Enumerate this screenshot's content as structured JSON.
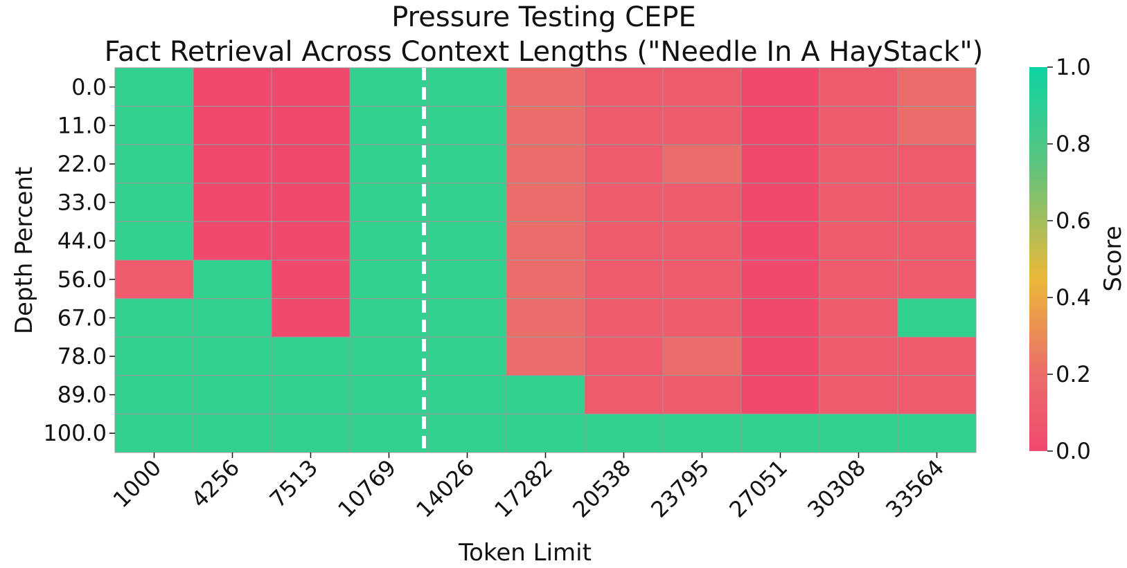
{
  "chart_data": {
    "type": "heatmap",
    "title": "Pressure Testing CEPE",
    "subtitle": "Fact Retrieval Across Context Lengths (\"Needle In A HayStack\")",
    "xlabel": "Token Limit",
    "ylabel": "Depth Percent",
    "x": [
      "1000",
      "4256",
      "7513",
      "10769",
      "14026",
      "17282",
      "20538",
      "23795",
      "27051",
      "30308",
      "33564"
    ],
    "y": [
      "0.0",
      "11.0",
      "22.0",
      "33.0",
      "44.0",
      "56.0",
      "67.0",
      "78.0",
      "89.0",
      "100.0"
    ],
    "values": [
      [
        1,
        0,
        0,
        1,
        1,
        0.2,
        0.1,
        0.1,
        0.0,
        0.1,
        0.2
      ],
      [
        1,
        0,
        0,
        1,
        1,
        0.2,
        0.1,
        0.1,
        0.0,
        0.1,
        0.2
      ],
      [
        1,
        0,
        0,
        1,
        1,
        0.2,
        0.1,
        0.2,
        0.0,
        0.1,
        0.1
      ],
      [
        1,
        0,
        0,
        1,
        1,
        0.2,
        0.1,
        0.1,
        0.0,
        0.1,
        0.1
      ],
      [
        1,
        0,
        0,
        1,
        1,
        0.2,
        0.1,
        0.1,
        0.0,
        0.1,
        0.1
      ],
      [
        0.1,
        1,
        0,
        1,
        1,
        0.2,
        0.1,
        0.1,
        0.0,
        0.1,
        0.1
      ],
      [
        1,
        1,
        0,
        1,
        1,
        0.2,
        0.1,
        0.1,
        0.0,
        0.1,
        1
      ],
      [
        1,
        1,
        1,
        1,
        1,
        0.2,
        0.1,
        0.2,
        0.0,
        0.1,
        0.1
      ],
      [
        1,
        1,
        1,
        1,
        1,
        1,
        0.1,
        0.1,
        0.0,
        0.1,
        0.1
      ],
      [
        1,
        1,
        1,
        1,
        1,
        1,
        1,
        1,
        1,
        1,
        1
      ]
    ],
    "colorbar": {
      "label": "Score",
      "range": [
        0.0,
        1.0
      ],
      "ticks": [
        "0.0",
        "0.2",
        "0.4",
        "0.6",
        "0.8",
        "1.0"
      ],
      "colors": [
        "#f0496e",
        "#eb896a",
        "#ebb839",
        "#5bc47f",
        "#0dd3a3"
      ]
    },
    "marker_line": {
      "after_column": "10769",
      "style": "dashed",
      "color": "#ffffff"
    }
  }
}
